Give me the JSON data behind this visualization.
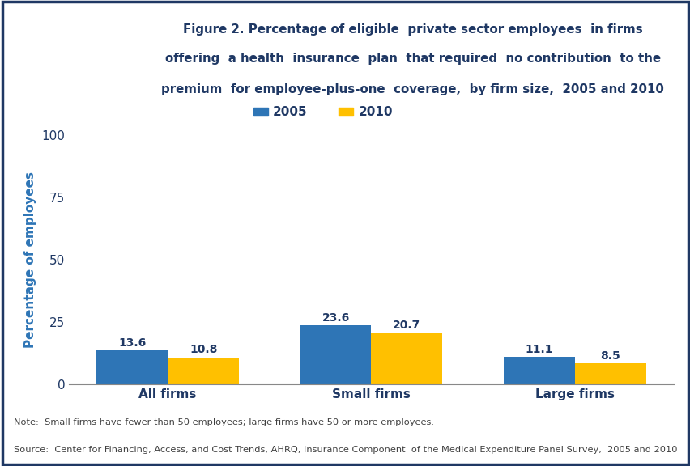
{
  "categories": [
    "All firms",
    "Small firms",
    "Large firms"
  ],
  "values_2005": [
    13.6,
    23.6,
    11.1
  ],
  "values_2010": [
    10.8,
    20.7,
    8.5
  ],
  "color_2005": "#2E75B6",
  "color_2010": "#FFC000",
  "ylabel": "Percentage of employees",
  "ylim": [
    0,
    100
  ],
  "yticks": [
    0,
    25,
    50,
    75,
    100
  ],
  "legend_labels": [
    "2005",
    "2010"
  ],
  "bar_width": 0.35,
  "title_line1": "Figure 2. Percentage of eligible  private sector employees  in firms",
  "title_line2": "offering  a health  insurance  plan  that required  no contribution  to the",
  "title_line3": "premium  for employee-plus-one  coverage,  by firm size,  2005 and 2010",
  "note_line1": "Note:  Small firms have fewer than 50 employees; large firms have 50 or more employees.",
  "note_line2": "Source:  Center for Financing, Access, and Cost Trends, AHRQ, Insurance Component  of the Medical Expenditure Panel Survey,  2005 and 2010",
  "background_color": "#FFFFFF",
  "outer_border_color": "#1F3864",
  "divider_color": "#1F3864",
  "axis_label_color": "#2E75B6",
  "tick_label_color": "#1F3864",
  "title_color": "#1F3864",
  "note_color": "#404040",
  "value_label_color": "#1F3864",
  "header_bg": "#009EBF",
  "logo_text_color": "#FFFFFF"
}
